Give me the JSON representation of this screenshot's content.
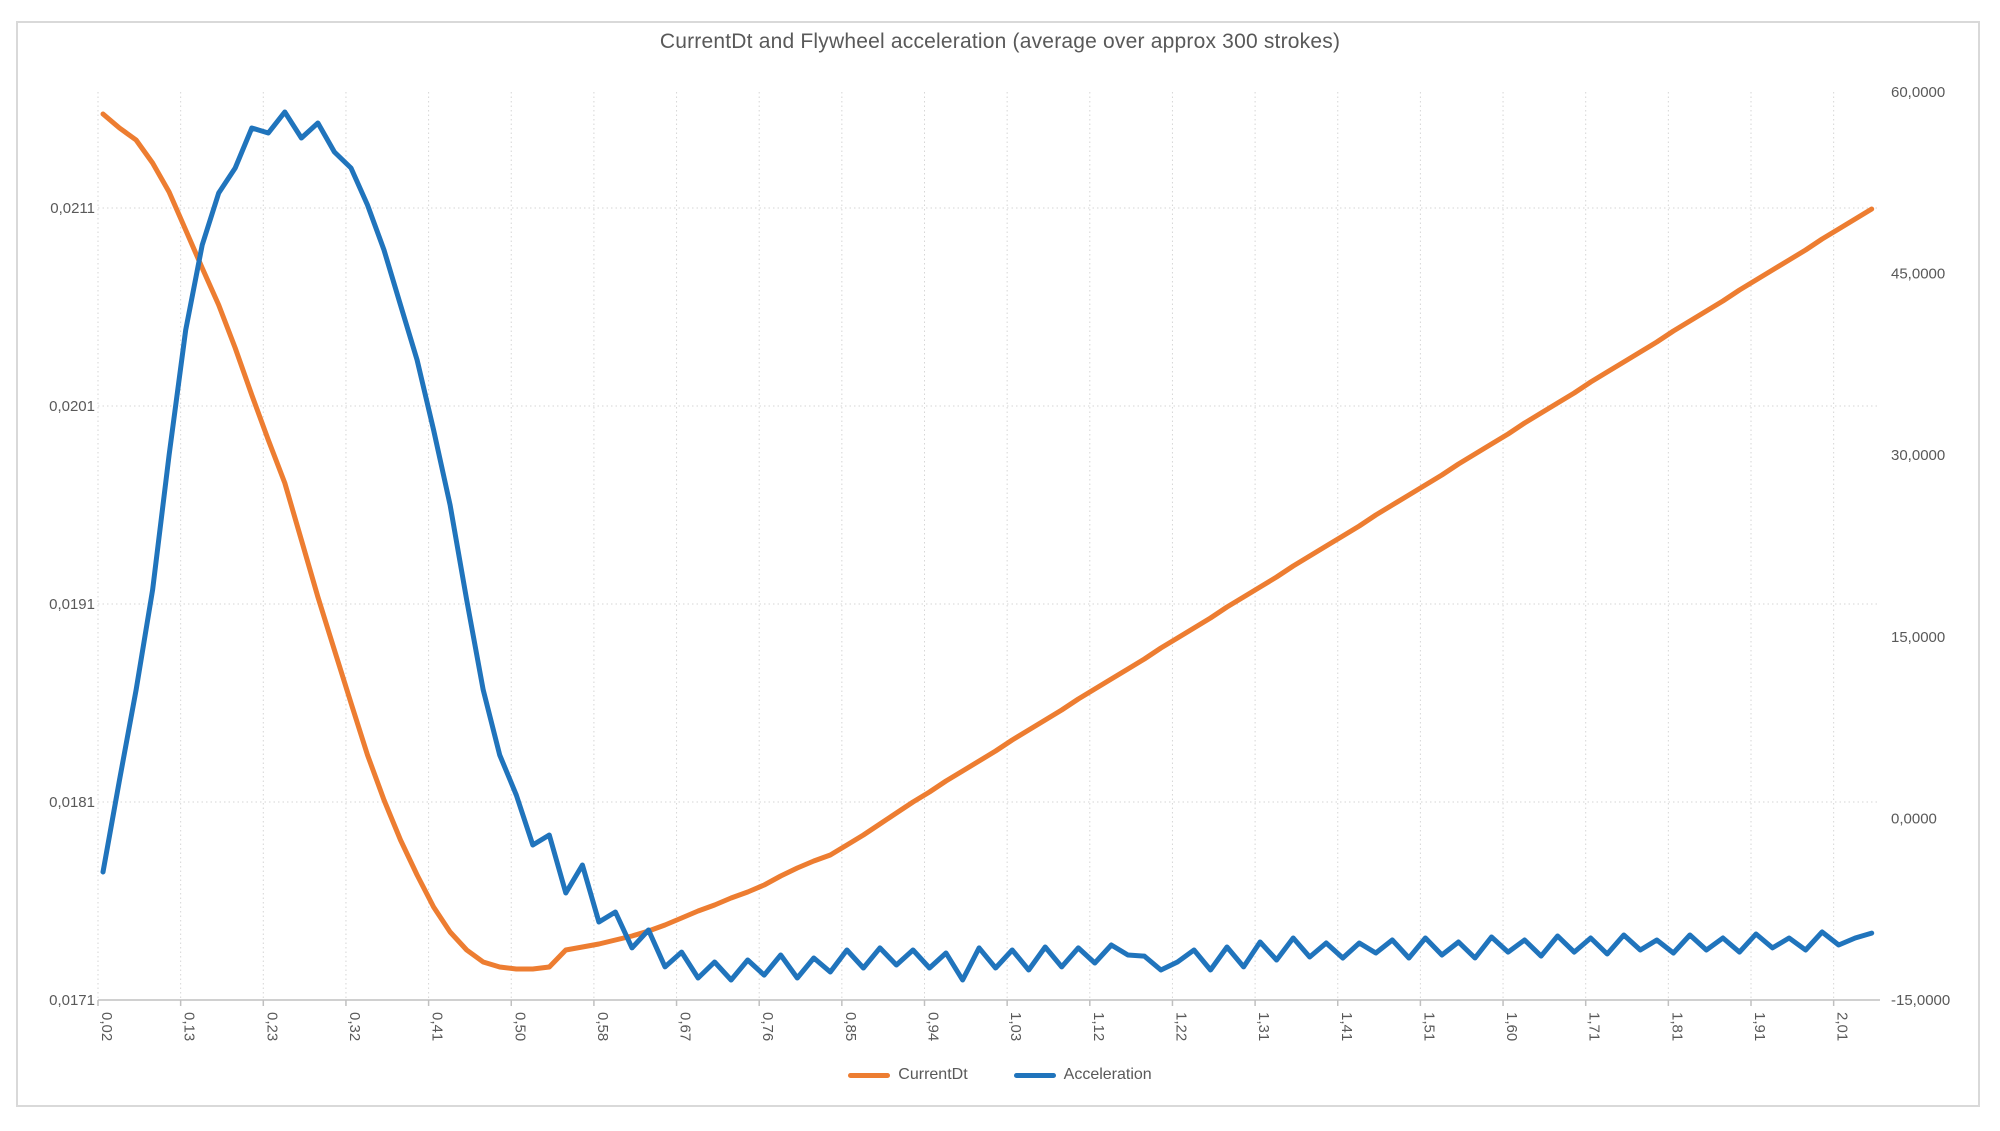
{
  "chart_data": {
    "type": "line",
    "title": "CurrentDt and Flywheel acceleration (average over approx 300 strokes)",
    "grid": true,
    "legend_position": "bottom",
    "points_per_tick": 5,
    "x_tick_labels": [
      "0,02",
      "0,13",
      "0,23",
      "0,32",
      "0,41",
      "0,50",
      "0,58",
      "0,67",
      "0,76",
      "0,85",
      "0,94",
      "1,03",
      "1,12",
      "1,22",
      "1,31",
      "1,41",
      "1,51",
      "1,60",
      "1,71",
      "1,81",
      "1,91",
      "2,01"
    ],
    "left_axis": {
      "tick_labels": [
        "0,0171",
        "0,0181",
        "0,0191",
        "0,0201",
        "0,0211"
      ],
      "min": 0.0171,
      "max": 0.021686,
      "series": "CurrentDt"
    },
    "right_axis": {
      "tick_labels": [
        "-15,0000",
        "0,0000",
        "15,0000",
        "30,0000",
        "45,0000",
        "60,0000"
      ],
      "min": -15,
      "max": 60,
      "series": "Acceleration"
    },
    "colors": {
      "currentdt": "#ED7D31",
      "acceleration": "#2074BC",
      "gridline": "#D6D6D6",
      "axis_line": "#C0C0C0",
      "text": "#595959"
    },
    "series": [
      {
        "name": "CurrentDt",
        "axis": "left",
        "color": "#ED7D31",
        "values": [
          0.0215747,
          0.021504,
          0.0214434,
          0.0213273,
          0.0211808,
          0.0209889,
          0.020797,
          0.0206101,
          0.0203929,
          0.0201556,
          0.0199283,
          0.0197111,
          0.0194232,
          0.0191354,
          0.0188677,
          0.0186,
          0.0183374,
          0.0181101,
          0.0179081,
          0.0177313,
          0.0175697,
          0.0174434,
          0.0173525,
          0.0172919,
          0.0172667,
          0.0172566,
          0.0172566,
          0.0172667,
          0.0173525,
          0.0173677,
          0.0173828,
          0.017403,
          0.0174232,
          0.0174485,
          0.0174788,
          0.0175141,
          0.0175495,
          0.0175798,
          0.0176152,
          0.0176455,
          0.0176808,
          0.0177263,
          0.0177667,
          0.017802,
          0.0178323,
          0.0178828,
          0.0179333,
          0.0179889,
          0.0180444,
          0.0181,
          0.0181505,
          0.0182061,
          0.0182566,
          0.0183071,
          0.0183576,
          0.0184131,
          0.0184636,
          0.0185141,
          0.0185646,
          0.0186202,
          0.0186707,
          0.0187212,
          0.0187717,
          0.0188222,
          0.0188778,
          0.0189283,
          0.0189788,
          0.0190293,
          0.0190848,
          0.0191354,
          0.0191859,
          0.0192364,
          0.0192919,
          0.0193424,
          0.0193929,
          0.0194434,
          0.0194939,
          0.0195495,
          0.0196,
          0.0196505,
          0.019701,
          0.0197515,
          0.0198071,
          0.0198576,
          0.0199081,
          0.0199586,
          0.0200141,
          0.0200646,
          0.0201152,
          0.0201657,
          0.0202212,
          0.0202717,
          0.0203222,
          0.0203727,
          0.0204232,
          0.0204788,
          0.0205293,
          0.0205798,
          0.0206303,
          0.0206859,
          0.0207364,
          0.0207869,
          0.0208374,
          0.0208879,
          0.0209434,
          0.0209939,
          0.0210444,
          0.0210949
        ]
      },
      {
        "name": "Acceleration",
        "axis": "right",
        "color": "#2074BC",
        "values": [
          -4.43,
          3.17,
          10.61,
          18.87,
          30.02,
          40.34,
          47.36,
          51.66,
          53.72,
          57.03,
          56.61,
          58.35,
          56.2,
          57.44,
          55.04,
          53.72,
          50.67,
          46.95,
          42.41,
          37.86,
          32.08,
          25.89,
          18.04,
          10.61,
          5.24,
          1.93,
          -2.2,
          -1.37,
          -6.16,
          -3.85,
          -8.56,
          -7.73,
          -10.7,
          -9.22,
          -12.27,
          -11.04,
          -13.18,
          -11.86,
          -13.35,
          -11.7,
          -12.94,
          -11.28,
          -13.18,
          -11.53,
          -12.69,
          -10.87,
          -12.36,
          -10.7,
          -12.11,
          -10.87,
          -12.36,
          -11.12,
          -13.35,
          -10.7,
          -12.36,
          -10.87,
          -12.52,
          -10.62,
          -12.27,
          -10.7,
          -11.94,
          -10.46,
          -11.28,
          -11.37,
          -12.52,
          -11.86,
          -10.87,
          -12.52,
          -10.62,
          -12.27,
          -10.21,
          -11.7,
          -9.88,
          -11.45,
          -10.29,
          -11.53,
          -10.29,
          -11.12,
          -10.04,
          -11.53,
          -9.88,
          -11.28,
          -10.21,
          -11.53,
          -9.8,
          -11.04,
          -10.04,
          -11.37,
          -9.71,
          -11.04,
          -9.88,
          -11.2,
          -9.63,
          -10.87,
          -10.04,
          -11.12,
          -9.63,
          -10.87,
          -9.88,
          -11.04,
          -9.55,
          -10.7,
          -9.88,
          -10.87,
          -9.38,
          -10.46,
          -9.88,
          -9.47
        ]
      }
    ]
  }
}
